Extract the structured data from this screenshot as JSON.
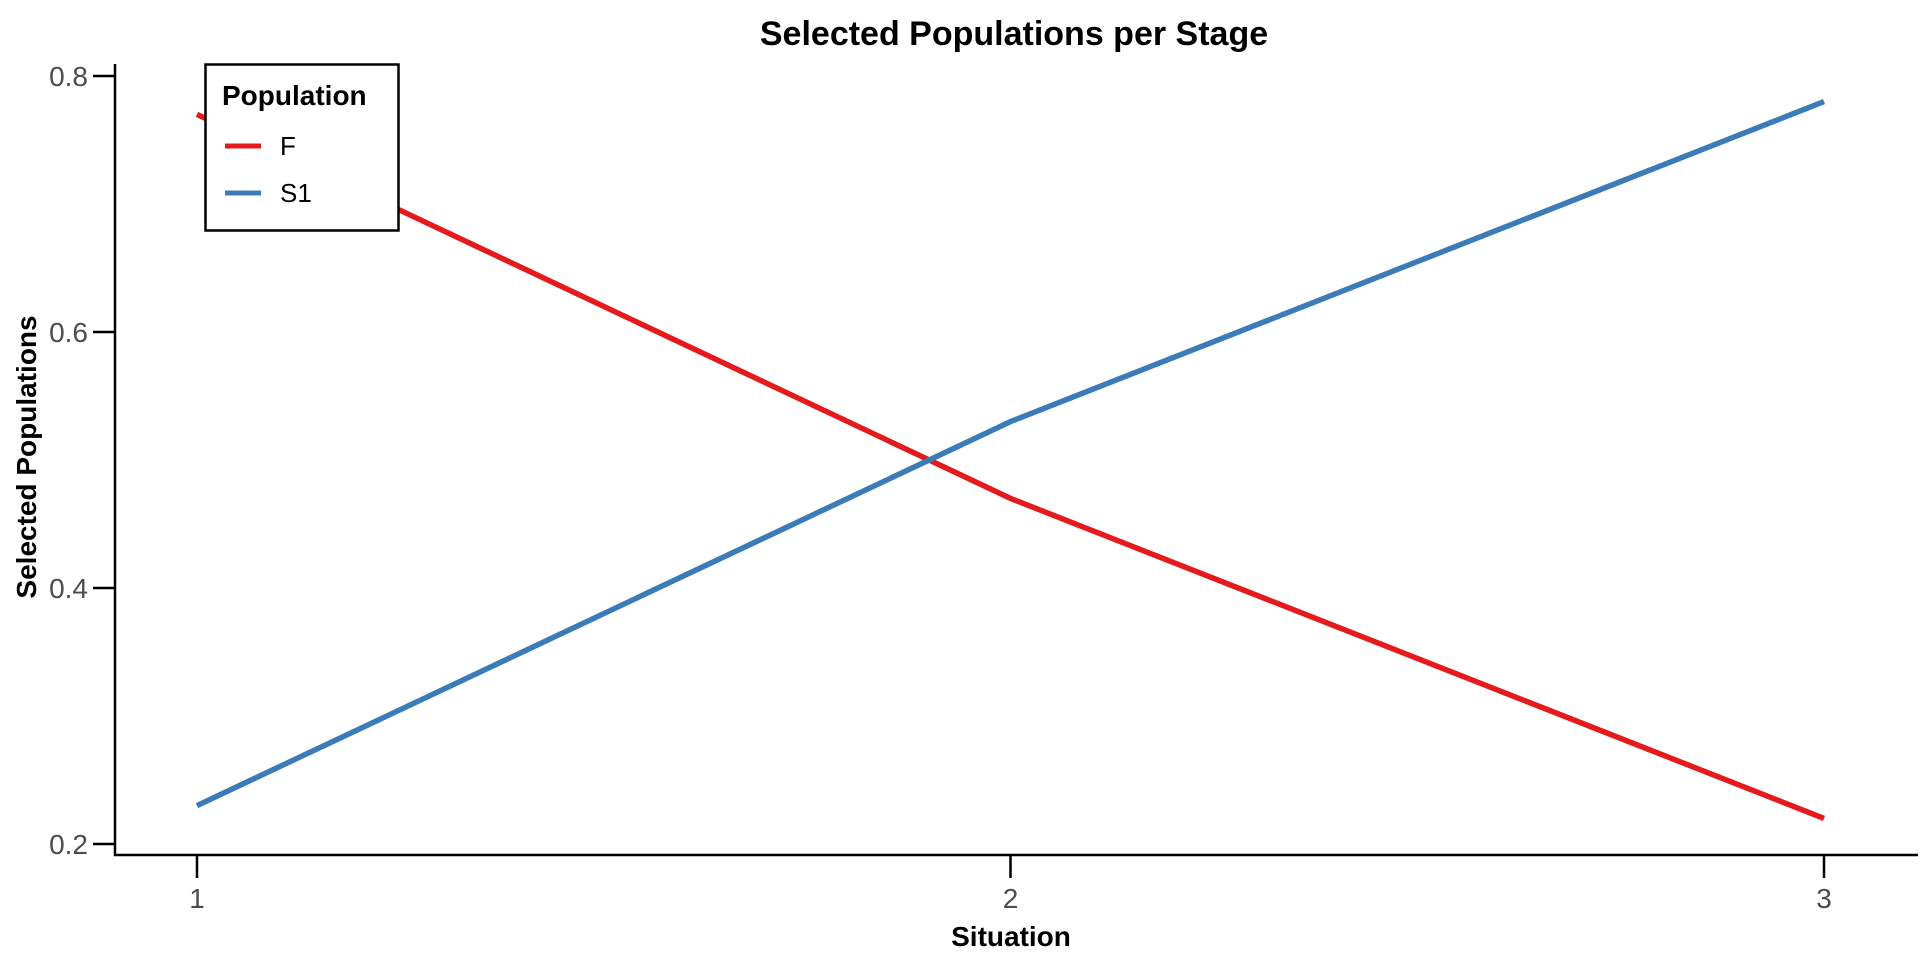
{
  "chart_data": {
    "type": "line",
    "title": "Selected Populations per Stage",
    "xlabel": "Situation",
    "ylabel": "Selected Populations",
    "x": [
      1,
      2,
      3
    ],
    "xticks": [
      "1",
      "2",
      "3"
    ],
    "yticks": [
      "0.2",
      "0.4",
      "0.6",
      "0.8"
    ],
    "xlim": [
      1,
      3
    ],
    "ylim": [
      0.2,
      0.8
    ],
    "grid": false,
    "legend": {
      "title": "Population",
      "position": "top-left",
      "entries": [
        "F",
        "S1"
      ]
    },
    "series": [
      {
        "name": "F",
        "color": "#e41a1c",
        "values": [
          0.77,
          0.47,
          0.22
        ]
      },
      {
        "name": "S1",
        "color": "#3b7cb8",
        "values": [
          0.23,
          0.53,
          0.78
        ]
      }
    ]
  },
  "colors": {
    "background": "#ffffff",
    "axis": "#000000",
    "tick_label": "#4d4d4d",
    "title_text": "#000000",
    "legend_border": "#000000",
    "legend_background": "#ffffff"
  }
}
